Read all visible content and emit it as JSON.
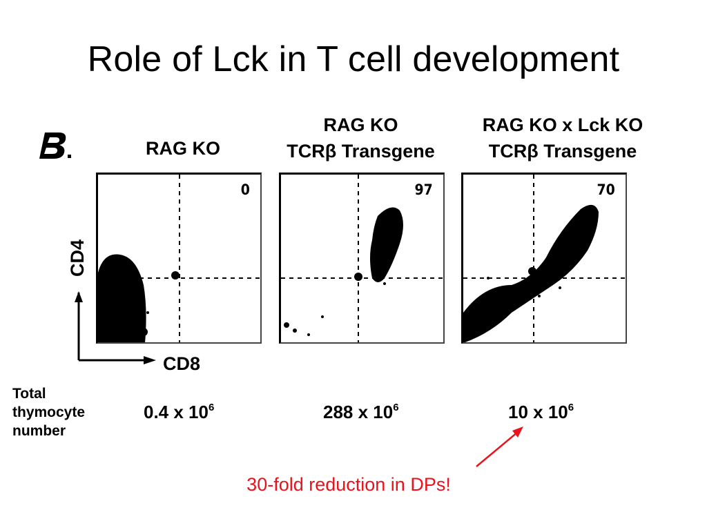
{
  "slide": {
    "title": "Role of Lck in T cell development",
    "panel_label": "B."
  },
  "columns": [
    {
      "line1": "",
      "line2": "RAG KO"
    },
    {
      "line1": "RAG KO",
      "line2": "TCRβ Transgene"
    },
    {
      "line1": "RAG KO x Lck KO",
      "line2": "TCRβ Transgene"
    }
  ],
  "plots": [
    {
      "quadrant_value": "0"
    },
    {
      "quadrant_value": "97"
    },
    {
      "quadrant_value": "70"
    }
  ],
  "axes": {
    "y_label": "CD4",
    "x_label": "CD8"
  },
  "thymocytes": {
    "label": "Total thymocyte number",
    "counts": [
      {
        "base": "0.4 x 10",
        "exp": "6"
      },
      {
        "base": "288 x 10",
        "exp": "6"
      },
      {
        "base": "10 x 10",
        "exp": "6"
      }
    ]
  },
  "annotation": {
    "text": "30-fold reduction in DPs!",
    "color": "#e8131c"
  }
}
